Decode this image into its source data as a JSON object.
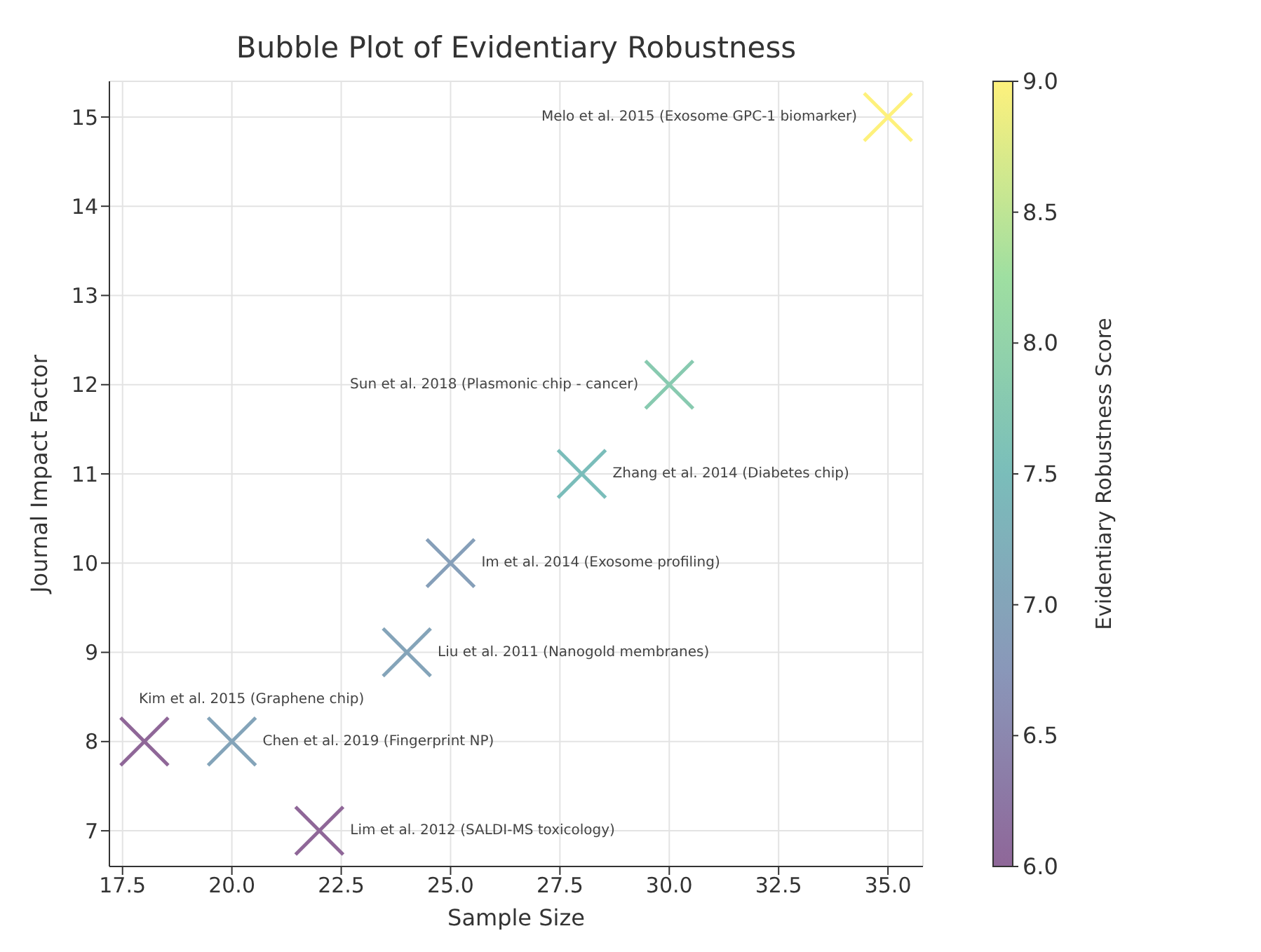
{
  "chart_data": {
    "type": "scatter",
    "title": "Bubble Plot of Evidentiary Robustness",
    "xlabel": "Sample Size",
    "ylabel": "Journal Impact Factor",
    "clabel": "Evidentiary Robustness Score",
    "x": [
      18,
      20,
      22,
      24,
      25,
      28,
      30,
      35
    ],
    "series": [
      {
        "values": [
          8,
          8,
          7,
          9,
          10,
          11,
          12,
          15
        ],
        "cvalues": [
          6.0,
          7.0,
          6.0,
          7.0,
          6.9,
          7.5,
          7.8,
          9.0
        ]
      }
    ],
    "marker": "cross",
    "grid": true,
    "xlim": [
      17.2,
      35.8
    ],
    "xticks": [
      17.5,
      {
        "value": 20,
        "label": "20.0"
      },
      22.5,
      {
        "value": 25,
        "label": "25.0"
      },
      27.5,
      {
        "value": 30,
        "label": "30.0"
      },
      32.5,
      {
        "value": 35,
        "label": "35.0"
      }
    ],
    "ylim": [
      6.6,
      15.4
    ],
    "yticks": [
      7,
      8,
      9,
      10,
      11,
      12,
      13,
      14,
      15
    ],
    "clim": [
      6.0,
      9.0
    ],
    "cticks": [
      {
        "value": 6,
        "label": "6.0"
      },
      6.5,
      {
        "value": 7,
        "label": "7.0"
      },
      7.5,
      {
        "value": 8,
        "label": "8.0"
      },
      8.5,
      {
        "value": 9,
        "label": "9.0"
      }
    ],
    "annotations": [
      {
        "text": "Kim et al. 2015 (Graphene chip)",
        "x": 18,
        "y": 8
      },
      {
        "text": "Chen et al. 2019 (Fingerprint NP)",
        "x": 20,
        "y": 8
      },
      {
        "text": "Lim et al. 2012 (SALDI-MS toxicology)",
        "x": 22,
        "y": 7
      },
      {
        "text": "Liu et al. 2011 (Nanogold membranes)",
        "x": 24,
        "y": 9
      },
      {
        "text": "Im et al. 2014 (Exosome profiling)",
        "x": 25,
        "y": 10
      },
      {
        "text": "Zhang et al. 2014 (Diabetes chip)",
        "x": 28,
        "y": 11
      },
      {
        "text": "Sun et al. 2018 (Plasmonic chip - cancer)",
        "x": 30,
        "y": 12
      },
      {
        "text": "Melo et al. 2015 (Exosome GPC-1 biomarker)",
        "x": 35,
        "y": 15
      }
    ]
  }
}
